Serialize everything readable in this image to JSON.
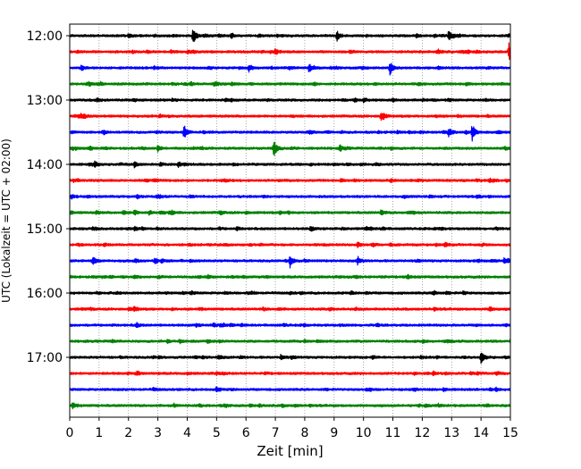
{
  "chart_data": {
    "type": "line",
    "title": "",
    "xlabel": "Zeit  [min]",
    "ylabel": "UTC (Lokalzeit = UTC + 02:00)",
    "xlim": [
      0,
      15
    ],
    "x_ticks": [
      "0",
      "1",
      "2",
      "3",
      "4",
      "5",
      "6",
      "7",
      "8",
      "9",
      "10",
      "11",
      "12",
      "13",
      "14",
      "15"
    ],
    "y_ticks": [
      {
        "value": "12:00",
        "label": "12:00"
      },
      {
        "value": "13:00",
        "label": "13:00"
      },
      {
        "value": "14:00",
        "label": "14:00"
      },
      {
        "value": "15:00",
        "label": "15:00"
      },
      {
        "value": "16:00",
        "label": "16:00"
      },
      {
        "value": "17:00",
        "label": "17:00"
      }
    ],
    "grid": {
      "vertical": true,
      "style": "dotted"
    },
    "trace_interval_min": 15,
    "colors": [
      "#000000",
      "#ff0000",
      "#0000ff",
      "#008000"
    ],
    "traces": [
      {
        "start": "12:00",
        "color": "#000000",
        "events": [
          {
            "t": 4.2,
            "amp": 1.0
          },
          {
            "t": 9.1,
            "amp": 0.55
          },
          {
            "t": 12.9,
            "amp": 0.6
          },
          {
            "t": 2.0,
            "amp": 0.25
          }
        ]
      },
      {
        "start": "12:15",
        "color": "#ff0000",
        "events": [
          {
            "t": 7.0,
            "amp": 0.3
          },
          {
            "t": 14.95,
            "amp": 1.0
          }
        ]
      },
      {
        "start": "12:30",
        "color": "#0000ff",
        "events": [
          {
            "t": 0.4,
            "amp": 0.3
          },
          {
            "t": 6.1,
            "amp": 0.45
          },
          {
            "t": 8.15,
            "amp": 0.55
          },
          {
            "t": 10.9,
            "amp": 0.85
          }
        ]
      },
      {
        "start": "12:45",
        "color": "#008000",
        "events": [
          {
            "t": 13.5,
            "amp": 0.2
          }
        ]
      },
      {
        "start": "13:00",
        "color": "#000000",
        "events": [
          {
            "t": 10.0,
            "amp": 0.2
          }
        ]
      },
      {
        "start": "13:15",
        "color": "#ff0000",
        "events": [
          {
            "t": 0.3,
            "amp": 0.25
          },
          {
            "t": 10.6,
            "amp": 0.55
          }
        ]
      },
      {
        "start": "13:30",
        "color": "#0000ff",
        "events": [
          {
            "t": 3.9,
            "amp": 0.9
          },
          {
            "t": 12.9,
            "amp": 0.55
          },
          {
            "t": 13.7,
            "amp": 1.0
          }
        ]
      },
      {
        "start": "13:45",
        "color": "#008000",
        "events": [
          {
            "t": 3.0,
            "amp": 0.35
          },
          {
            "t": 6.95,
            "amp": 1.0
          },
          {
            "t": 9.2,
            "amp": 0.35
          }
        ]
      },
      {
        "start": "14:00",
        "color": "#000000",
        "events": [
          {
            "t": 2.2,
            "amp": 0.3
          },
          {
            "t": 3.7,
            "amp": 0.35
          }
        ]
      },
      {
        "start": "14:15",
        "color": "#ff0000",
        "events": []
      },
      {
        "start": "14:30",
        "color": "#0000ff",
        "events": [
          {
            "t": 2.3,
            "amp": 0.2
          }
        ]
      },
      {
        "start": "14:45",
        "color": "#008000",
        "events": [
          {
            "t": 2.7,
            "amp": 0.25
          },
          {
            "t": 10.6,
            "amp": 0.3
          }
        ]
      },
      {
        "start": "15:00",
        "color": "#000000",
        "events": [
          {
            "t": 8.2,
            "amp": 0.3
          }
        ]
      },
      {
        "start": "15:15",
        "color": "#ff0000",
        "events": [
          {
            "t": 9.8,
            "amp": 0.35
          }
        ]
      },
      {
        "start": "15:30",
        "color": "#0000ff",
        "events": [
          {
            "t": 0.8,
            "amp": 0.55
          },
          {
            "t": 2.9,
            "amp": 0.35
          },
          {
            "t": 7.5,
            "amp": 0.75
          },
          {
            "t": 9.8,
            "amp": 0.5
          },
          {
            "t": 14.8,
            "amp": 0.4
          }
        ]
      },
      {
        "start": "15:45",
        "color": "#008000",
        "events": [
          {
            "t": 2.2,
            "amp": 0.25
          },
          {
            "t": 11.5,
            "amp": 0.25
          }
        ]
      },
      {
        "start": "16:00",
        "color": "#000000",
        "events": [
          {
            "t": 13.4,
            "amp": 0.2
          }
        ]
      },
      {
        "start": "16:15",
        "color": "#ff0000",
        "events": [
          {
            "t": 2.2,
            "amp": 0.3
          },
          {
            "t": 14.3,
            "amp": 0.3
          }
        ]
      },
      {
        "start": "16:30",
        "color": "#0000ff",
        "events": [
          {
            "t": 4.9,
            "amp": 0.25
          }
        ]
      },
      {
        "start": "16:45",
        "color": "#008000",
        "events": [
          {
            "t": 4.7,
            "amp": 0.2
          }
        ]
      },
      {
        "start": "17:00",
        "color": "#000000",
        "events": [
          {
            "t": 7.2,
            "amp": 0.35
          },
          {
            "t": 14.0,
            "amp": 0.7
          }
        ]
      },
      {
        "start": "17:15",
        "color": "#ff0000",
        "events": []
      },
      {
        "start": "17:30",
        "color": "#0000ff",
        "events": [
          {
            "t": 14.5,
            "amp": 0.2
          }
        ]
      },
      {
        "start": "17:45",
        "color": "#008000",
        "events": [
          {
            "t": 0.1,
            "amp": 0.25
          }
        ]
      }
    ]
  }
}
